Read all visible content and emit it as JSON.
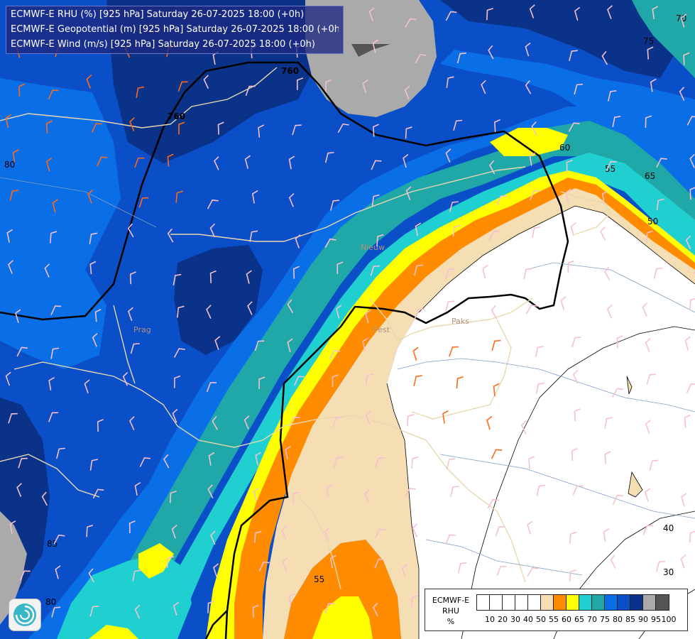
{
  "header": {
    "lines": [
      "ECMWF-E RHU (%) [925 hPa] Saturday 26-07-2025 18:00 (+0h)",
      "ECMWF-E Geopotential (m) [925 hPa] Saturday 26-07-2025 18:00 (+0h)",
      "ECMWF-E Wind (m/s) [925 hPa] Saturday 26-07-2025 18:00 (+0h)"
    ]
  },
  "legend": {
    "title_line1": "ECMWF-E",
    "title_line2": "RHU",
    "title_line3": "%",
    "ticks": [
      "10",
      "20",
      "30",
      "40",
      "50",
      "55",
      "60",
      "65",
      "70",
      "75",
      "80",
      "85",
      "90",
      "95",
      "100"
    ],
    "colors": [
      "#ffffff",
      "#ffffff",
      "#ffffff",
      "#ffffff",
      "#ffffff",
      "#f5deb3",
      "#ff8c00",
      "#ffff00",
      "#20d0d0",
      "#20a8a8",
      "#0a6ee6",
      "#0a4ec8",
      "#0a3288",
      "#aaaaaa",
      "#555555"
    ]
  },
  "map": {
    "contour_labels_rhu": [
      "80",
      "75",
      "70",
      "65",
      "60",
      "55",
      "50",
      "40",
      "30",
      "85",
      "55",
      "80"
    ],
    "geopotential_labels": [
      "760",
      "760"
    ],
    "place_labels": [
      "Nieuw",
      "Prag",
      "Pest",
      "Paks"
    ],
    "fill_colors": {
      "white": "#ffffff",
      "wheat": "#f5deb3",
      "orange": "#ff8c00",
      "yellow": "#ffff00",
      "cyan": "#20d0d0",
      "teal": "#20a8a8",
      "blue_light": "#0a6ee6",
      "blue": "#0a4ec8",
      "blue_dark": "#0a3288",
      "grey": "#aaaaaa"
    }
  },
  "logo": {
    "icon": "ecmwf-logo-icon"
  }
}
